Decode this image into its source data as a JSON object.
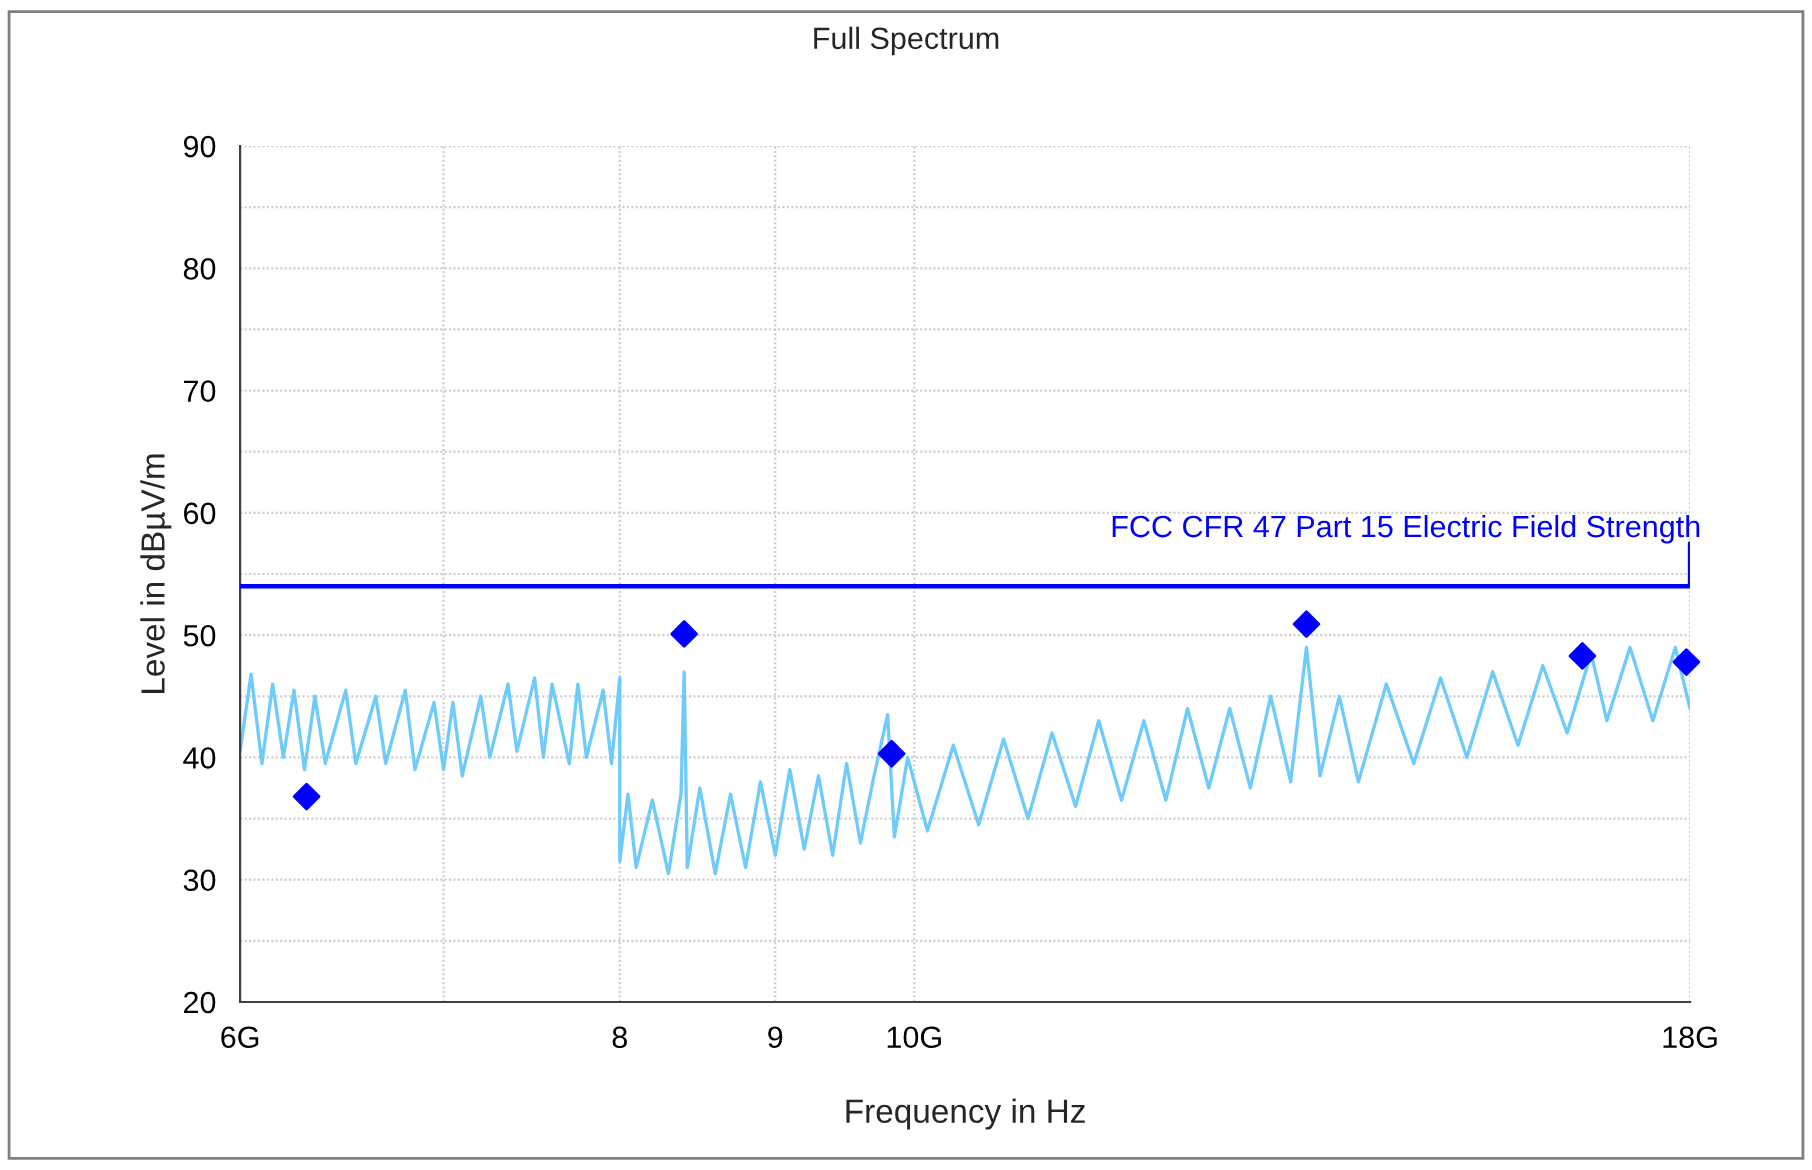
{
  "chart_data": {
    "type": "line",
    "title": "Full Spectrum",
    "xlabel": "Frequency in Hz",
    "ylabel": "Level in dBµV/m",
    "log": "x",
    "xlim": [
      6,
      18
    ],
    "ylim": [
      20,
      90
    ],
    "xticks": [
      {
        "value": 6,
        "label": "6G"
      },
      {
        "value": 7,
        "label": null
      },
      8,
      9,
      {
        "value": 10,
        "label": "10G"
      },
      {
        "value": 18,
        "label": "18G"
      }
    ],
    "yticks": [
      20,
      {
        "value": 25,
        "label": null
      },
      30,
      {
        "value": 35,
        "label": null
      },
      40,
      {
        "value": 45,
        "label": null
      },
      50,
      {
        "value": 55,
        "label": null
      },
      60,
      {
        "value": 65,
        "label": null
      },
      70,
      {
        "value": 75,
        "label": null
      },
      80,
      {
        "value": 85,
        "label": null
      },
      90
    ],
    "grid": true,
    "legend": false,
    "series": [
      {
        "color": "#6ecbfa",
        "line_style": "solid",
        "x": [
          6.0,
          6.05,
          6.1,
          6.15,
          6.2,
          6.25,
          6.3,
          6.35,
          6.4,
          6.5,
          6.55,
          6.65,
          6.7,
          6.8,
          6.85,
          6.95,
          7.0,
          7.05,
          7.1,
          7.2,
          7.25,
          7.35,
          7.4,
          7.5,
          7.55,
          7.6,
          7.7,
          7.75,
          7.8,
          7.9,
          7.95,
          8.0,
          8.0,
          8.05,
          8.1,
          8.2,
          8.3,
          8.38,
          8.4,
          8.42,
          8.5,
          8.6,
          8.7,
          8.8,
          8.9,
          9.0,
          9.1,
          9.2,
          9.3,
          9.4,
          9.5,
          9.6,
          9.7,
          9.8,
          9.85,
          9.95,
          10.1,
          10.3,
          10.5,
          10.7,
          10.9,
          11.1,
          11.3,
          11.5,
          11.7,
          11.9,
          12.1,
          12.3,
          12.5,
          12.7,
          12.9,
          13.1,
          13.3,
          13.46,
          13.6,
          13.8,
          14.0,
          14.3,
          14.6,
          14.9,
          15.2,
          15.5,
          15.8,
          16.1,
          16.4,
          16.7,
          16.9,
          17.2,
          17.5,
          17.8,
          18.0
        ],
        "values": [
          40.5,
          46.8,
          39.5,
          46,
          40,
          45.5,
          39,
          45,
          39.5,
          45.5,
          39.5,
          45,
          39.5,
          45.5,
          39,
          44.5,
          39,
          44.5,
          38.5,
          45,
          40,
          46,
          40.5,
          46.5,
          40,
          46,
          39.5,
          46,
          40,
          45.5,
          39.5,
          46.5,
          31.5,
          37,
          31,
          36.5,
          30.5,
          37,
          47,
          31,
          37.5,
          30.5,
          37,
          31,
          38,
          32,
          39,
          32.5,
          38.5,
          32,
          39.5,
          33,
          38.5,
          43.5,
          33.5,
          40,
          34,
          41,
          34.5,
          41.5,
          35,
          42,
          36,
          43,
          36.5,
          43,
          36.5,
          44,
          37.5,
          44,
          37.5,
          45,
          38,
          49,
          38.5,
          45,
          38,
          46,
          39.5,
          46.5,
          40,
          47,
          41,
          47.5,
          42,
          48.5,
          43,
          49,
          43,
          49,
          44
        ]
      },
      {
        "type": "scatter",
        "color": "#0000ff",
        "marker": "diamond",
        "x": [
          6.31,
          8.4,
          9.83,
          13.46,
          16.59,
          17.95
        ],
        "values": [
          36.8,
          50.1,
          40.3,
          50.9,
          48.3,
          47.8
        ]
      },
      {
        "type": "step",
        "name": "FCC CFR 47 Part 15 Electric Field Strength",
        "color": "#0000ff",
        "line_style": "solid",
        "x": [
          6,
          18,
          18
        ],
        "values": [
          54,
          54,
          57.5
        ]
      }
    ]
  }
}
